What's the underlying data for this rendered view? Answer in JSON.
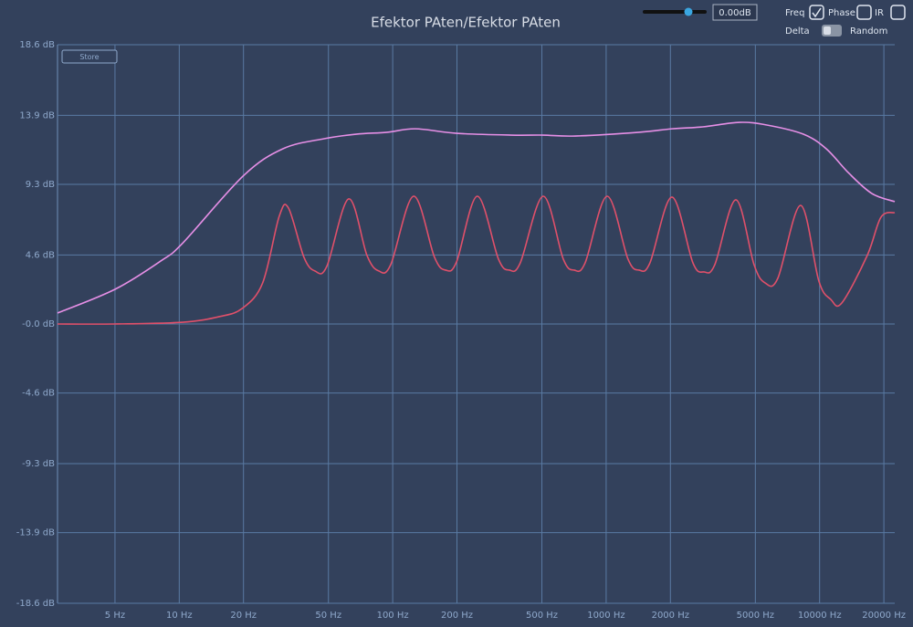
{
  "ui": {
    "store": "Store",
    "gain_input": "0.00dB",
    "freq": "Freq",
    "phase": "Phase",
    "ir": "IR",
    "delta": "Delta",
    "random": "Random"
  },
  "chart_data": {
    "type": "line",
    "title": "Efektor PAten/Efektor PAten",
    "xscale": "log",
    "grid": true,
    "xlim": [
      2.69,
      22490
    ],
    "ylim": [
      -18.6,
      18.6
    ],
    "xticks": [
      {
        "value": 5,
        "label": "5 Hz"
      },
      {
        "value": 10,
        "label": "10 Hz"
      },
      {
        "value": 20,
        "label": "20 Hz"
      },
      {
        "value": 50,
        "label": "50 Hz"
      },
      {
        "value": 100,
        "label": "100 Hz"
      },
      {
        "value": 200,
        "label": "200 Hz"
      },
      {
        "value": 500,
        "label": "500 Hz"
      },
      {
        "value": 1000,
        "label": "1000 Hz"
      },
      {
        "value": 2000,
        "label": "2000 Hz"
      },
      {
        "value": 5000,
        "label": "5000 Hz"
      },
      {
        "value": 10000,
        "label": "10000 Hz"
      },
      {
        "value": 20000,
        "label": "20000 Hz"
      }
    ],
    "yticks": [
      {
        "value": 18.6,
        "label": "18.6 dB"
      },
      {
        "value": 13.9,
        "label": "13.9 dB"
      },
      {
        "value": 9.3,
        "label": "9.3 dB"
      },
      {
        "value": 4.6,
        "label": "4.6 dB"
      },
      {
        "value": 0,
        "label": "-0.0 dB"
      },
      {
        "value": -4.6,
        "label": "-4.6 dB"
      },
      {
        "value": -9.3,
        "label": "-9.3 dB"
      },
      {
        "value": -13.9,
        "label": "-13.9 dB"
      },
      {
        "value": -18.6,
        "label": "-18.6 dB"
      }
    ],
    "series": [
      {
        "color": "#e68fe6",
        "x": [
          2.69,
          5,
          8.18,
          10.4,
          19.9,
          30.6,
          47.7,
          67.3,
          94.1,
          127.7,
          199,
          359,
          507,
          716,
          1426,
          2032,
          2840,
          4215,
          5660,
          8395,
          10740,
          13740,
          17580,
          22490
        ],
        "values": [
          0.73,
          2.31,
          4.19,
          5.4,
          9.85,
          11.67,
          12.34,
          12.64,
          12.77,
          13.0,
          12.7,
          12.58,
          12.58,
          12.52,
          12.77,
          13.0,
          13.13,
          13.43,
          13.25,
          12.64,
          11.67,
          10.03,
          8.69,
          8.15
        ]
      },
      {
        "color": "#e0506a",
        "x": [
          2.69,
          5,
          10.4,
          15.4,
          19.7,
          24.6,
          29.4,
          32.5,
          38.4,
          43.2,
          49.1,
          62.2,
          75.8,
          86.1,
          97.9,
          125.2,
          157,
          177,
          199,
          249,
          313,
          352,
          396,
          507,
          630,
          708,
          797,
          1010,
          1266,
          1426,
          1604,
          2032,
          2550,
          2870,
          3228,
          4050,
          4930,
          5550,
          6370,
          8150,
          9920,
          11280,
          12700,
          16710,
          19380,
          22490
        ],
        "values": [
          0,
          0,
          0.12,
          0.49,
          1.03,
          2.74,
          7.17,
          7.72,
          4.44,
          3.53,
          3.83,
          8.33,
          4.56,
          3.53,
          3.95,
          8.51,
          4.44,
          3.59,
          4.13,
          8.51,
          4.32,
          3.59,
          4.07,
          8.51,
          4.32,
          3.59,
          4.07,
          8.51,
          4.32,
          3.59,
          4.07,
          8.45,
          4.07,
          3.47,
          3.95,
          8.27,
          3.95,
          2.74,
          3.04,
          7.9,
          2.86,
          1.64,
          1.4,
          4.56,
          7.11,
          7.42
        ]
      }
    ]
  }
}
